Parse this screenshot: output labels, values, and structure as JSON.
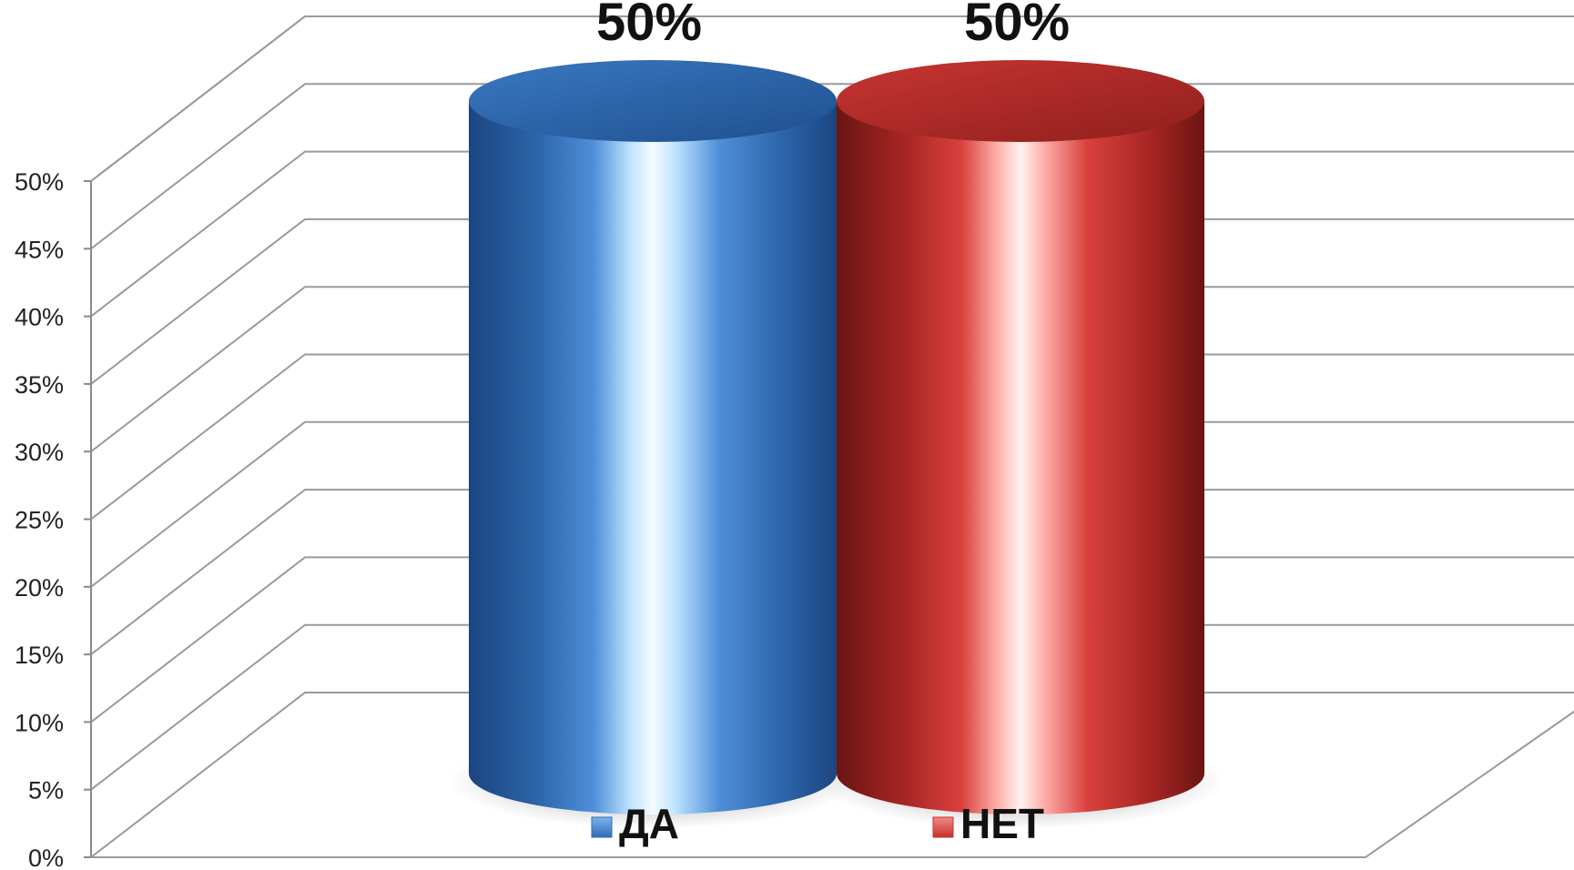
{
  "chart_data": {
    "type": "bar",
    "style": "3d-cylinder",
    "categories": [
      "ДА",
      "НЕТ"
    ],
    "values": [
      50,
      50
    ],
    "value_labels": [
      "50%",
      "50%"
    ],
    "colors": [
      "#2f6db5",
      "#c8302d"
    ],
    "ylim": [
      0,
      50
    ],
    "yticks": [
      "0%",
      "5%",
      "10%",
      "15%",
      "20%",
      "25%",
      "30%",
      "35%",
      "40%",
      "45%",
      "50%"
    ],
    "grid": true,
    "legend": {
      "position": "bottom",
      "entries": [
        {
          "label": "ДА",
          "color": "#2f6db5"
        },
        {
          "label": "НЕТ",
          "color": "#c8302d"
        }
      ]
    },
    "title": "",
    "xlabel": "",
    "ylabel": ""
  }
}
